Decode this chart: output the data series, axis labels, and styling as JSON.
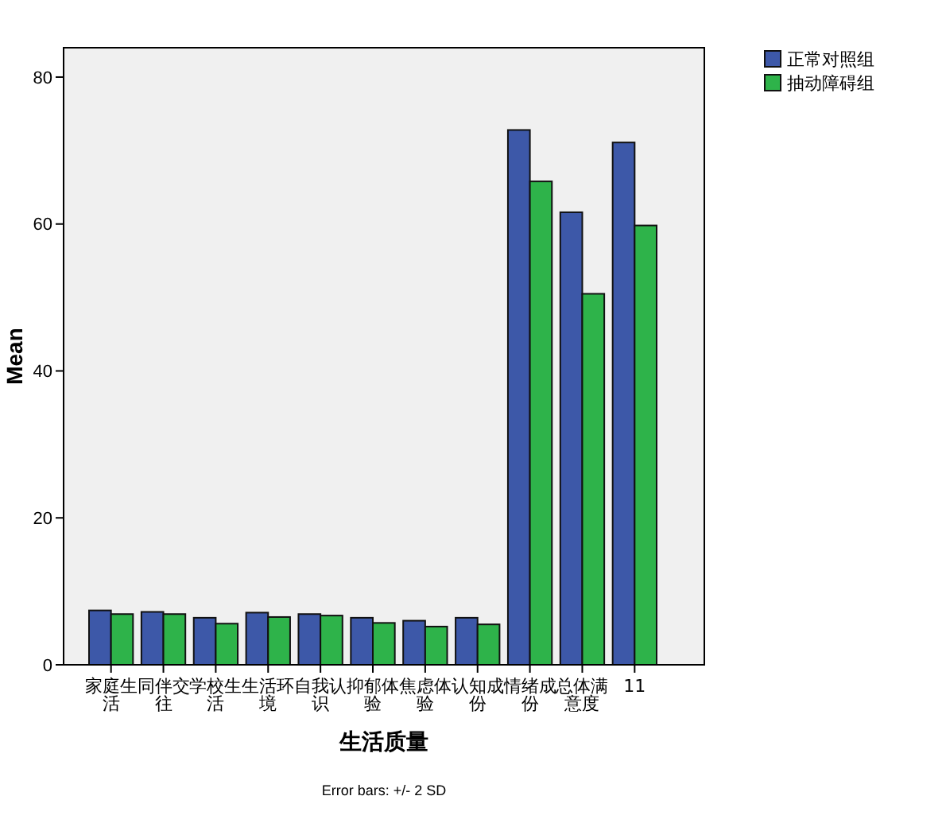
{
  "chart_data": {
    "type": "bar",
    "xlabel": "生活质量",
    "ylabel": "Mean",
    "categories": [
      "家庭生活",
      "同伴交往",
      "学校生活",
      "生活环境",
      "自我认识",
      "抑郁体验",
      "焦虑体验",
      "认知成份",
      "情绪成份",
      "总体满意度",
      "11"
    ],
    "series": [
      {
        "name": "正常对照组",
        "color": "#3d58a8",
        "values": [
          7.4,
          7.2,
          6.4,
          7.1,
          6.9,
          6.4,
          6.0,
          6.4,
          72.8,
          61.6,
          71.1
        ]
      },
      {
        "name": "抽动障碍组",
        "color": "#2eb34a",
        "values": [
          6.9,
          6.9,
          5.6,
          6.5,
          6.7,
          5.7,
          5.2,
          5.5,
          65.8,
          50.5,
          59.8
        ]
      }
    ],
    "ylim": [
      0,
      84
    ],
    "yticks": [
      0,
      20,
      40,
      60,
      80
    ],
    "legend": "top right",
    "annotations": [
      "Error bars: +/- 2 SD"
    ]
  }
}
